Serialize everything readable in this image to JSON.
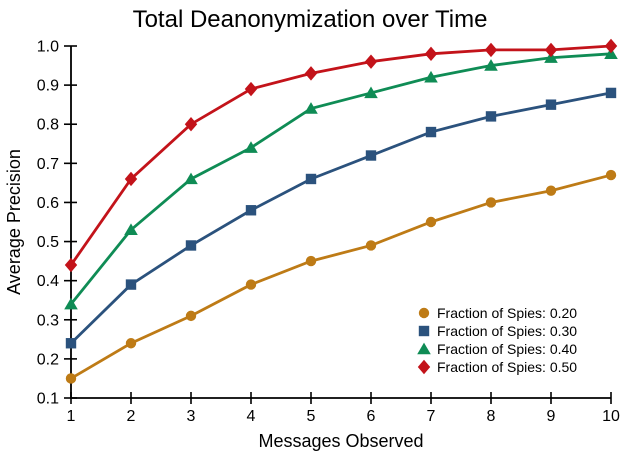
{
  "figure": {
    "background": "#ffffff",
    "axis_color": "#000000",
    "text_color": "#000000"
  },
  "chart_data": {
    "type": "line",
    "title": "Total Deanonymization over Time",
    "xlabel": "Messages Observed",
    "ylabel": "Average Precision",
    "x": [
      1,
      2,
      3,
      4,
      5,
      6,
      7,
      8,
      9,
      10
    ],
    "xticks": [
      1,
      2,
      3,
      4,
      5,
      6,
      7,
      8,
      9,
      10
    ],
    "yticks": [
      0.1,
      0.2,
      0.3,
      0.4,
      0.5,
      0.6,
      0.7,
      0.8,
      0.9,
      1.0
    ],
    "xlim": [
      1,
      10
    ],
    "ylim": [
      0.1,
      1.0
    ],
    "grid": false,
    "legend_position": "lower-right",
    "series": [
      {
        "name": "Fraction of Spies: 0.20",
        "marker": "circle",
        "color": "#BE7B16",
        "values": [
          0.15,
          0.24,
          0.31,
          0.39,
          0.45,
          0.49,
          0.55,
          0.6,
          0.63,
          0.67
        ]
      },
      {
        "name": "Fraction of Spies: 0.30",
        "marker": "square",
        "color": "#2B527D",
        "values": [
          0.24,
          0.39,
          0.49,
          0.58,
          0.66,
          0.72,
          0.78,
          0.82,
          0.85,
          0.88
        ]
      },
      {
        "name": "Fraction of Spies: 0.40",
        "marker": "triangle",
        "color": "#0F8C55",
        "values": [
          0.34,
          0.53,
          0.66,
          0.74,
          0.84,
          0.88,
          0.92,
          0.95,
          0.97,
          0.98
        ]
      },
      {
        "name": "Fraction of Spies: 0.50",
        "marker": "diamond",
        "color": "#C3131A",
        "values": [
          0.44,
          0.66,
          0.8,
          0.89,
          0.93,
          0.96,
          0.98,
          0.99,
          0.99,
          1.0
        ]
      }
    ]
  }
}
